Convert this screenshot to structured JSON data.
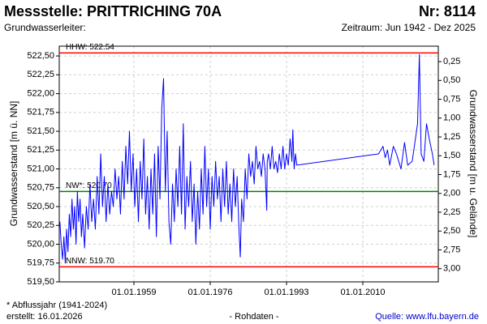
{
  "chart_data": {
    "type": "line",
    "title": "Messstelle: PRITTRICHING 70A",
    "station_number": "Nr: 8114",
    "aquifer": "Grundwasserleiter:",
    "period": "Zeitraum: Jun 1942 - Dez 2025",
    "y_label": "Grundwasserstand [m ü. NN]",
    "y2_label": "Grundwasserstand [m u. Gelände]",
    "footnote": "* Abflussjahr (1941-2024)",
    "created": "erstellt:  16.01.2026",
    "data_note": "- Rohdaten -",
    "source": "Quelle: www.lfu.bayern.de",
    "color": "#0000ff",
    "grid": true,
    "xlim": [
      1942.36,
      2026.82
    ],
    "xticks": [
      {
        "value": 1959,
        "label": "01.01.1959"
      },
      {
        "value": 1976,
        "label": "01.01.1976"
      },
      {
        "value": 1993,
        "label": "01.01.1993"
      },
      {
        "value": 2010,
        "label": "01.01.2010"
      }
    ],
    "ylim": [
      519.5,
      522.63
    ],
    "yticks": [
      {
        "value": 519.5,
        "label": "519,50"
      },
      {
        "value": 519.75,
        "label": "519,75"
      },
      {
        "value": 520,
        "label": "520,00"
      },
      {
        "value": 520.25,
        "label": "520,25"
      },
      {
        "value": 520.5,
        "label": "520,50"
      },
      {
        "value": 520.75,
        "label": "520,75"
      },
      {
        "value": 521,
        "label": "521,00"
      },
      {
        "value": 521.25,
        "label": "521,25"
      },
      {
        "value": 521.5,
        "label": "521,50"
      },
      {
        "value": 521.75,
        "label": "521,75"
      },
      {
        "value": 522,
        "label": "522,00"
      },
      {
        "value": 522.25,
        "label": "522,25"
      },
      {
        "value": 522.5,
        "label": "522,50"
      }
    ],
    "y2lim": [
      3.175,
      0.045
    ],
    "y2ticks": [
      {
        "value": 3,
        "label": "3,00"
      },
      {
        "value": 2.75,
        "label": "2,75"
      },
      {
        "value": 2.5,
        "label": "2,50"
      },
      {
        "value": 2.25,
        "label": "2,25"
      },
      {
        "value": 2,
        "label": "2,00"
      },
      {
        "value": 1.75,
        "label": "1,75"
      },
      {
        "value": 1.5,
        "label": "1,50"
      },
      {
        "value": 1.25,
        "label": "1,25"
      },
      {
        "value": 1,
        "label": "1,00"
      },
      {
        "value": 0.75,
        "label": "0,75"
      },
      {
        "value": 0.5,
        "label": "0,50"
      },
      {
        "value": 0.25,
        "label": "0,25"
      }
    ],
    "reference_lines": [
      {
        "label": "HHW: 522.54",
        "value": 522.54,
        "color": "#ff0000"
      },
      {
        "label": "NW*: 520.70",
        "value": 520.7,
        "color": "#008000"
      },
      {
        "label": "NNW: 519.70",
        "value": 519.7,
        "color": "#ff0000"
      }
    ],
    "x": [
      1942.5,
      1942.8,
      1943.1,
      1943.4,
      1943.7,
      1944.0,
      1944.3,
      1944.6,
      1944.9,
      1945.2,
      1945.5,
      1945.8,
      1946.1,
      1946.4,
      1946.7,
      1947.0,
      1947.3,
      1947.6,
      1948.0,
      1948.4,
      1948.8,
      1949.2,
      1949.6,
      1950.0,
      1950.4,
      1950.8,
      1951.2,
      1951.6,
      1952.0,
      1952.4,
      1952.8,
      1953.2,
      1953.6,
      1954.0,
      1954.4,
      1954.8,
      1955.2,
      1955.6,
      1956.0,
      1956.4,
      1956.8,
      1957.2,
      1957.6,
      1958.0,
      1958.4,
      1958.8,
      1959.2,
      1959.6,
      1960.0,
      1960.4,
      1960.8,
      1961.2,
      1961.6,
      1962.0,
      1962.4,
      1962.8,
      1963.2,
      1963.6,
      1964.0,
      1964.4,
      1964.8,
      1965.2,
      1965.6,
      1966.0,
      1966.4,
      1966.8,
      1967.2,
      1967.6,
      1968.0,
      1968.4,
      1968.8,
      1969.2,
      1969.6,
      1970.0,
      1970.4,
      1970.8,
      1971.2,
      1971.6,
      1972.0,
      1972.4,
      1972.8,
      1973.2,
      1973.6,
      1974.0,
      1974.4,
      1974.8,
      1975.2,
      1975.6,
      1976.0,
      1976.4,
      1976.8,
      1977.2,
      1977.6,
      1978.0,
      1978.4,
      1978.8,
      1979.2,
      1979.6,
      1980.0,
      1980.4,
      1980.8,
      1981.2,
      1981.6,
      1982.0,
      1982.4,
      1982.7,
      1983.0,
      1983.4,
      1983.8,
      1984.2,
      1984.6,
      1985.0,
      1985.4,
      1985.8,
      1986.2,
      1986.6,
      1987.0,
      1987.4,
      1987.8,
      1988.2,
      1988.6,
      1988.7,
      1989.0,
      1989.4,
      1989.8,
      1990.2,
      1990.6,
      1991.0,
      1991.4,
      1991.8,
      1992.2,
      1992.6,
      1993.0,
      1993.4,
      1993.8,
      1994.2,
      1994.4,
      1994.7,
      1995.0,
      1995.3,
      2013.5,
      2014.5,
      2015.0,
      2015.5,
      2016.0,
      2016.8,
      2017.5,
      2018.5,
      2019.3,
      2020.0,
      2021.0,
      2022.2,
      2022.6,
      2023.0,
      2023.6,
      2024.2,
      2024.8,
      2025.5,
      2025.9
    ],
    "values": [
      520.3,
      520.0,
      519.8,
      520.1,
      519.75,
      520.2,
      519.9,
      520.4,
      520.1,
      520.6,
      520.2,
      520.5,
      520.0,
      520.7,
      520.3,
      520.6,
      520.1,
      520.4,
      519.95,
      520.5,
      520.2,
      520.8,
      520.3,
      520.6,
      520.2,
      520.9,
      520.4,
      521.2,
      520.5,
      520.9,
      520.3,
      520.8,
      520.4,
      520.7,
      520.5,
      521.0,
      520.6,
      520.9,
      520.4,
      521.1,
      520.6,
      521.3,
      520.8,
      521.5,
      520.7,
      521.2,
      520.5,
      521.0,
      520.3,
      521.1,
      520.6,
      521.4,
      520.4,
      520.9,
      520.2,
      521.0,
      520.4,
      521.2,
      520.1,
      521.3,
      520.6,
      521.8,
      522.2,
      520.7,
      521.5,
      520.3,
      520.0,
      520.8,
      520.3,
      521.0,
      520.5,
      521.3,
      520.4,
      521.6,
      520.2,
      520.9,
      520.5,
      521.1,
      520.3,
      520.8,
      520.0,
      520.7,
      520.2,
      521.0,
      520.4,
      521.3,
      520.5,
      521.0,
      520.2,
      520.9,
      520.5,
      521.1,
      520.6,
      520.9,
      520.3,
      521.0,
      520.5,
      521.1,
      520.4,
      520.8,
      520.3,
      521.0,
      520.5,
      520.9,
      520.2,
      519.83,
      520.6,
      520.3,
      521.0,
      520.6,
      521.2,
      520.9,
      521.1,
      520.8,
      521.3,
      521.0,
      521.1,
      520.9,
      521.2,
      521.0,
      520.45,
      521.1,
      521.2,
      521.0,
      521.3,
      521.0,
      521.1,
      520.95,
      521.2,
      521.0,
      521.3,
      521.0,
      521.2,
      521.05,
      521.4,
      521.1,
      521.52,
      521.0,
      521.2,
      521.05,
      521.2,
      521.3,
      521.15,
      521.25,
      521.05,
      521.3,
      521.2,
      521.0,
      521.35,
      521.05,
      521.1,
      521.6,
      522.52,
      521.2,
      521.1,
      521.6,
      521.4,
      521.2,
      521.05
    ]
  }
}
